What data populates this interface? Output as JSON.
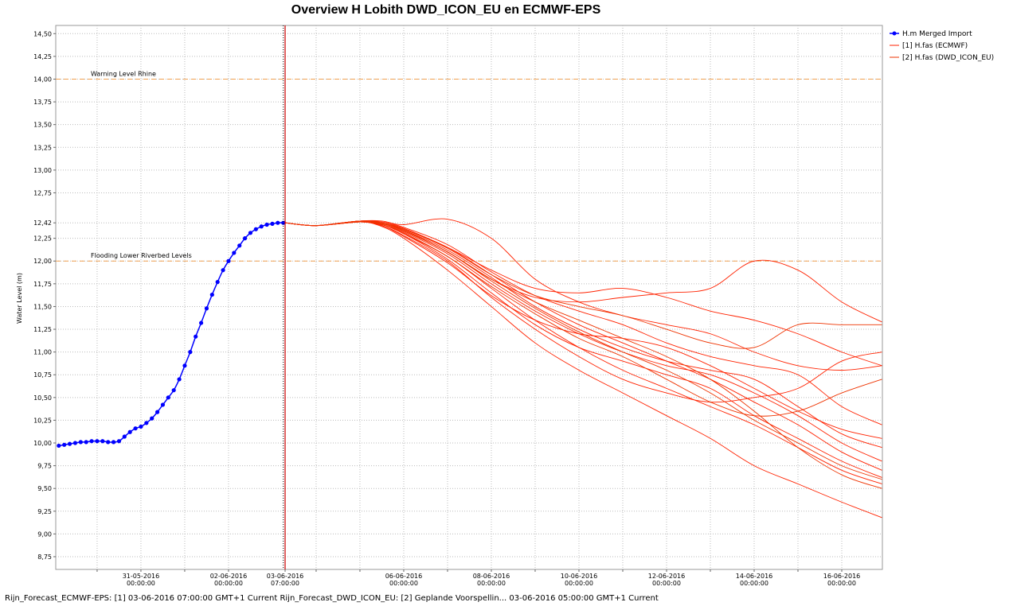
{
  "chart_data": {
    "type": "line",
    "title": "Overview H Lobith DWD_ICON_EU en ECMWF-EPS",
    "y_label": "Water Level (m)",
    "footer": "Rijn_Forecast_ECMWF-EPS: [1] 03-06-2016 07:00:00 GMT+1 Current Rijn_Forecast_DWD_ICON_EU: [2] Geplande Voorspellin... 03-06-2016 05:00:00 GMT+1 Current",
    "xlim": [
      "2016-05-29 01:20",
      "2016-06-16 22:15"
    ],
    "ylim": [
      8.61,
      14.59
    ],
    "grid": true,
    "legend": "right",
    "yticks": [
      {
        "value": 8.75,
        "label": "8,75"
      },
      {
        "value": 9.0,
        "label": "9,00"
      },
      {
        "value": 9.25,
        "label": "9,25"
      },
      {
        "value": 9.5,
        "label": "9,50"
      },
      {
        "value": 9.75,
        "label": "9,75"
      },
      {
        "value": 10.0,
        "label": "10,00"
      },
      {
        "value": 10.25,
        "label": "10,25"
      },
      {
        "value": 10.5,
        "label": "10,50"
      },
      {
        "value": 10.75,
        "label": "10,75"
      },
      {
        "value": 11.0,
        "label": "11,00"
      },
      {
        "value": 11.25,
        "label": "11,25"
      },
      {
        "value": 11.5,
        "label": "11,50"
      },
      {
        "value": 11.75,
        "label": "11,75"
      },
      {
        "value": 12.0,
        "label": "12,00"
      },
      {
        "value": 12.25,
        "label": "12,25"
      },
      {
        "value": 12.42,
        "label": "12,42",
        "color": "#0000ff"
      },
      {
        "value": 12.75,
        "label": "12,75"
      },
      {
        "value": 13.0,
        "label": "13,00"
      },
      {
        "value": 13.25,
        "label": "13,25"
      },
      {
        "value": 13.5,
        "label": "13,50"
      },
      {
        "value": 13.75,
        "label": "13,75"
      },
      {
        "value": 14.0,
        "label": "14,00"
      },
      {
        "value": 14.25,
        "label": "14,25"
      },
      {
        "value": 14.5,
        "label": "14,50"
      }
    ],
    "xticks": [
      {
        "value": "2016-05-30 00:00",
        "label": null
      },
      {
        "value": "2016-05-31 00:00",
        "label": "31-05-2016 00:00:00"
      },
      {
        "value": "2016-06-01 00:00",
        "label": null
      },
      {
        "value": "2016-06-02 00:00",
        "label": "02-06-2016 00:00:00"
      },
      {
        "value": "2016-06-03 07:00",
        "label": "03-06-2016 07:00:00",
        "color": "#0000ff"
      },
      {
        "value": "2016-06-04 00:00",
        "label": null
      },
      {
        "value": "2016-06-05 00:00",
        "label": null
      },
      {
        "value": "2016-06-06 00:00",
        "label": "06-06-2016 00:00:00"
      },
      {
        "value": "2016-06-07 00:00",
        "label": null
      },
      {
        "value": "2016-06-08 00:00",
        "label": "08-06-2016 00:00:00"
      },
      {
        "value": "2016-06-09 00:00",
        "label": null
      },
      {
        "value": "2016-06-10 00:00",
        "label": "10-06-2016 00:00:00"
      },
      {
        "value": "2016-06-11 00:00",
        "label": null
      },
      {
        "value": "2016-06-12 00:00",
        "label": "12-06-2016 00:00:00"
      },
      {
        "value": "2016-06-13 00:00",
        "label": null
      },
      {
        "value": "2016-06-14 00:00",
        "label": "14-06-2016 00:00:00"
      },
      {
        "value": "2016-06-15 00:00",
        "label": null
      },
      {
        "value": "2016-06-16 00:00",
        "label": "16-06-2016 00:00:00"
      }
    ],
    "forecast_time": "2016-06-03 07:00",
    "thresholds": [
      {
        "label": "Warning Level Rhine",
        "value": 14.0,
        "color": "#f0a050"
      },
      {
        "label": "Flooding Lower Riverbed Levels",
        "value": 12.0,
        "color": "#f0a050"
      }
    ],
    "x": [
      "2016-06-03 07:00",
      "2016-06-04 00:00",
      "2016-06-05 00:00",
      "2016-06-05 12:00",
      "2016-06-06 00:00",
      "2016-06-07 00:00",
      "2016-06-08 00:00",
      "2016-06-09 00:00",
      "2016-06-10 00:00",
      "2016-06-11 00:00",
      "2016-06-12 00:00",
      "2016-06-13 00:00",
      "2016-06-14 00:00",
      "2016-06-15 00:00",
      "2016-06-16 00:00",
      "2016-06-16 22:00"
    ],
    "series": [
      {
        "name": "H.m  Merged Import",
        "color": "#0000ff",
        "markers": true,
        "x": [
          "2016-05-29 03:00",
          "2016-05-29 06:00",
          "2016-05-29 09:00",
          "2016-05-29 12:00",
          "2016-05-29 15:00",
          "2016-05-29 18:00",
          "2016-05-29 21:00",
          "2016-05-30 00:00",
          "2016-05-30 03:00",
          "2016-05-30 06:00",
          "2016-05-30 09:00",
          "2016-05-30 12:00",
          "2016-05-30 15:00",
          "2016-05-30 18:00",
          "2016-05-30 21:00",
          "2016-05-31 00:00",
          "2016-05-31 03:00",
          "2016-05-31 06:00",
          "2016-05-31 09:00",
          "2016-05-31 12:00",
          "2016-05-31 15:00",
          "2016-05-31 18:00",
          "2016-05-31 21:00",
          "2016-06-01 00:00",
          "2016-06-01 03:00",
          "2016-06-01 06:00",
          "2016-06-01 09:00",
          "2016-06-01 12:00",
          "2016-06-01 15:00",
          "2016-06-01 18:00",
          "2016-06-01 21:00",
          "2016-06-02 00:00",
          "2016-06-02 03:00",
          "2016-06-02 06:00",
          "2016-06-02 09:00",
          "2016-06-02 12:00",
          "2016-06-02 15:00",
          "2016-06-02 18:00",
          "2016-06-02 21:00",
          "2016-06-03 00:00",
          "2016-06-03 03:00",
          "2016-06-03 06:00"
        ],
        "values": [
          9.97,
          9.98,
          9.99,
          10.0,
          10.01,
          10.01,
          10.02,
          10.02,
          10.02,
          10.01,
          10.01,
          10.02,
          10.07,
          10.12,
          10.16,
          10.18,
          10.22,
          10.27,
          10.34,
          10.42,
          10.5,
          10.58,
          10.7,
          10.85,
          11.0,
          11.17,
          11.32,
          11.48,
          11.63,
          11.77,
          11.9,
          12.0,
          12.09,
          12.17,
          12.25,
          12.31,
          12.35,
          12.38,
          12.4,
          12.41,
          12.42,
          12.42
        ]
      },
      {
        "name": "[1] H.fas  (ECMWF)",
        "color": "#ff2200",
        "members": [
          [
            12.42,
            12.39,
            12.44,
            12.42,
            12.35,
            12.15,
            11.85,
            11.55,
            11.3,
            11.1,
            10.9,
            10.7,
            10.45,
            10.2,
            9.9,
            9.7
          ],
          [
            12.42,
            12.39,
            12.43,
            12.4,
            12.3,
            12.05,
            11.7,
            11.35,
            11.05,
            10.8,
            10.6,
            10.4,
            10.2,
            9.95,
            9.7,
            9.55
          ],
          [
            12.42,
            12.39,
            12.44,
            12.44,
            12.4,
            12.46,
            12.25,
            11.8,
            11.55,
            11.4,
            11.3,
            11.2,
            11.0,
            10.85,
            10.8,
            10.85
          ],
          [
            12.42,
            12.39,
            12.43,
            12.38,
            12.25,
            11.9,
            11.5,
            11.1,
            10.8,
            10.55,
            10.3,
            10.05,
            9.75,
            9.55,
            9.35,
            9.18
          ],
          [
            12.42,
            12.39,
            12.44,
            12.41,
            12.33,
            12.1,
            11.8,
            11.6,
            11.55,
            11.6,
            11.65,
            11.7,
            12.0,
            11.9,
            11.55,
            11.33
          ],
          [
            12.42,
            12.39,
            12.43,
            12.4,
            12.32,
            12.08,
            11.75,
            11.45,
            11.2,
            11.0,
            10.85,
            10.75,
            10.55,
            10.3,
            10.0,
            9.8
          ],
          [
            12.42,
            12.39,
            12.44,
            12.42,
            12.36,
            12.15,
            11.9,
            11.7,
            11.65,
            11.7,
            11.6,
            11.45,
            11.35,
            11.2,
            11.0,
            10.85
          ],
          [
            12.42,
            12.39,
            12.43,
            12.39,
            12.28,
            12.0,
            11.6,
            11.25,
            10.95,
            10.7,
            10.55,
            10.45,
            10.5,
            10.6,
            10.9,
            11.0
          ],
          [
            12.42,
            12.39,
            12.44,
            12.41,
            12.34,
            12.12,
            11.82,
            11.5,
            11.25,
            11.05,
            10.9,
            10.8,
            10.7,
            10.4,
            10.1,
            9.95
          ],
          [
            12.42,
            12.39,
            12.43,
            12.4,
            12.3,
            12.02,
            11.65,
            11.3,
            11.05,
            10.9,
            10.75,
            10.6,
            10.3,
            10.05,
            9.8,
            9.62
          ],
          [
            12.42,
            12.39,
            12.44,
            12.43,
            12.37,
            12.18,
            11.88,
            11.62,
            11.45,
            11.3,
            11.1,
            10.95,
            10.85,
            10.75,
            10.4,
            10.2
          ],
          [
            12.42,
            12.39,
            12.43,
            12.39,
            12.27,
            11.98,
            11.62,
            11.35,
            11.2,
            11.15,
            11.05,
            10.85,
            10.6,
            10.35,
            10.15,
            10.05
          ]
        ]
      },
      {
        "name": "[2] H.fas  (DWD_ICON_EU)",
        "color": "#ee3300",
        "members": [
          [
            12.42,
            12.39,
            12.43,
            12.41,
            12.33,
            12.1,
            11.78,
            11.48,
            11.22,
            11.0,
            10.8,
            10.55,
            10.25,
            10.0,
            9.75,
            9.6
          ],
          [
            12.42,
            12.39,
            12.44,
            12.42,
            12.35,
            12.14,
            11.85,
            11.62,
            11.5,
            11.4,
            11.25,
            11.1,
            11.05,
            11.3,
            11.3,
            11.3
          ],
          [
            12.42,
            12.39,
            12.43,
            12.4,
            12.31,
            12.05,
            11.72,
            11.42,
            11.15,
            10.95,
            10.7,
            10.45,
            10.3,
            10.35,
            10.55,
            10.7
          ],
          [
            12.42,
            12.39,
            12.44,
            12.42,
            12.34,
            12.1,
            11.8,
            11.55,
            11.35,
            11.15,
            10.95,
            10.7,
            10.35,
            9.95,
            9.65,
            9.5
          ]
        ]
      }
    ]
  }
}
